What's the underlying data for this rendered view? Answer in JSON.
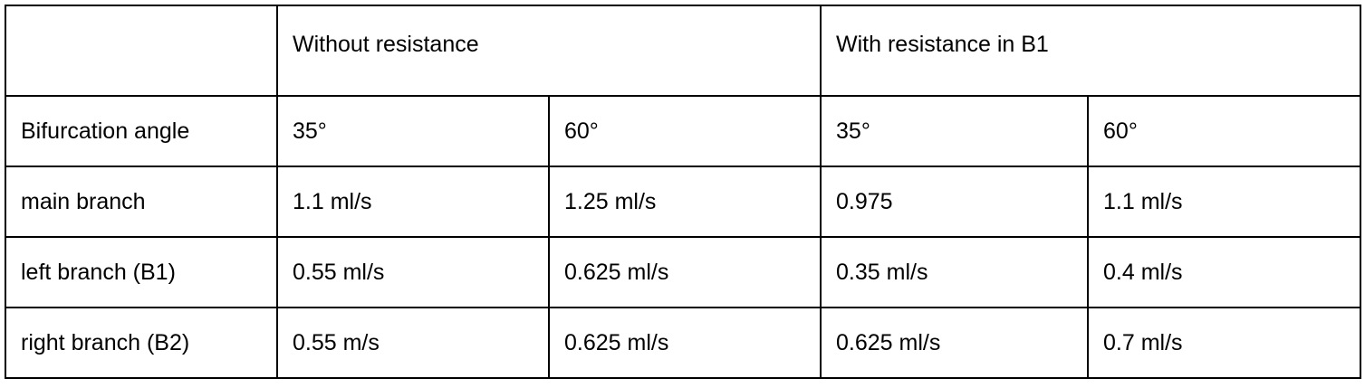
{
  "table": {
    "groups": [
      "Without resistance",
      "With resistance in B1"
    ],
    "rows": [
      [
        "Bifurcation angle",
        "35°",
        "60°",
        "35°",
        "60°"
      ],
      [
        "main branch",
        "1.1 ml/s",
        "1.25 ml/s",
        "0.975",
        "1.1 ml/s"
      ],
      [
        "left branch (B1)",
        "0.55 ml/s",
        "0.625 ml/s",
        "0.35 ml/s",
        "0.4 ml/s"
      ],
      [
        "right branch (B2)",
        "0.55 m/s",
        "0.625 ml/s",
        "0.625 ml/s",
        "0.7 ml/s"
      ]
    ]
  }
}
